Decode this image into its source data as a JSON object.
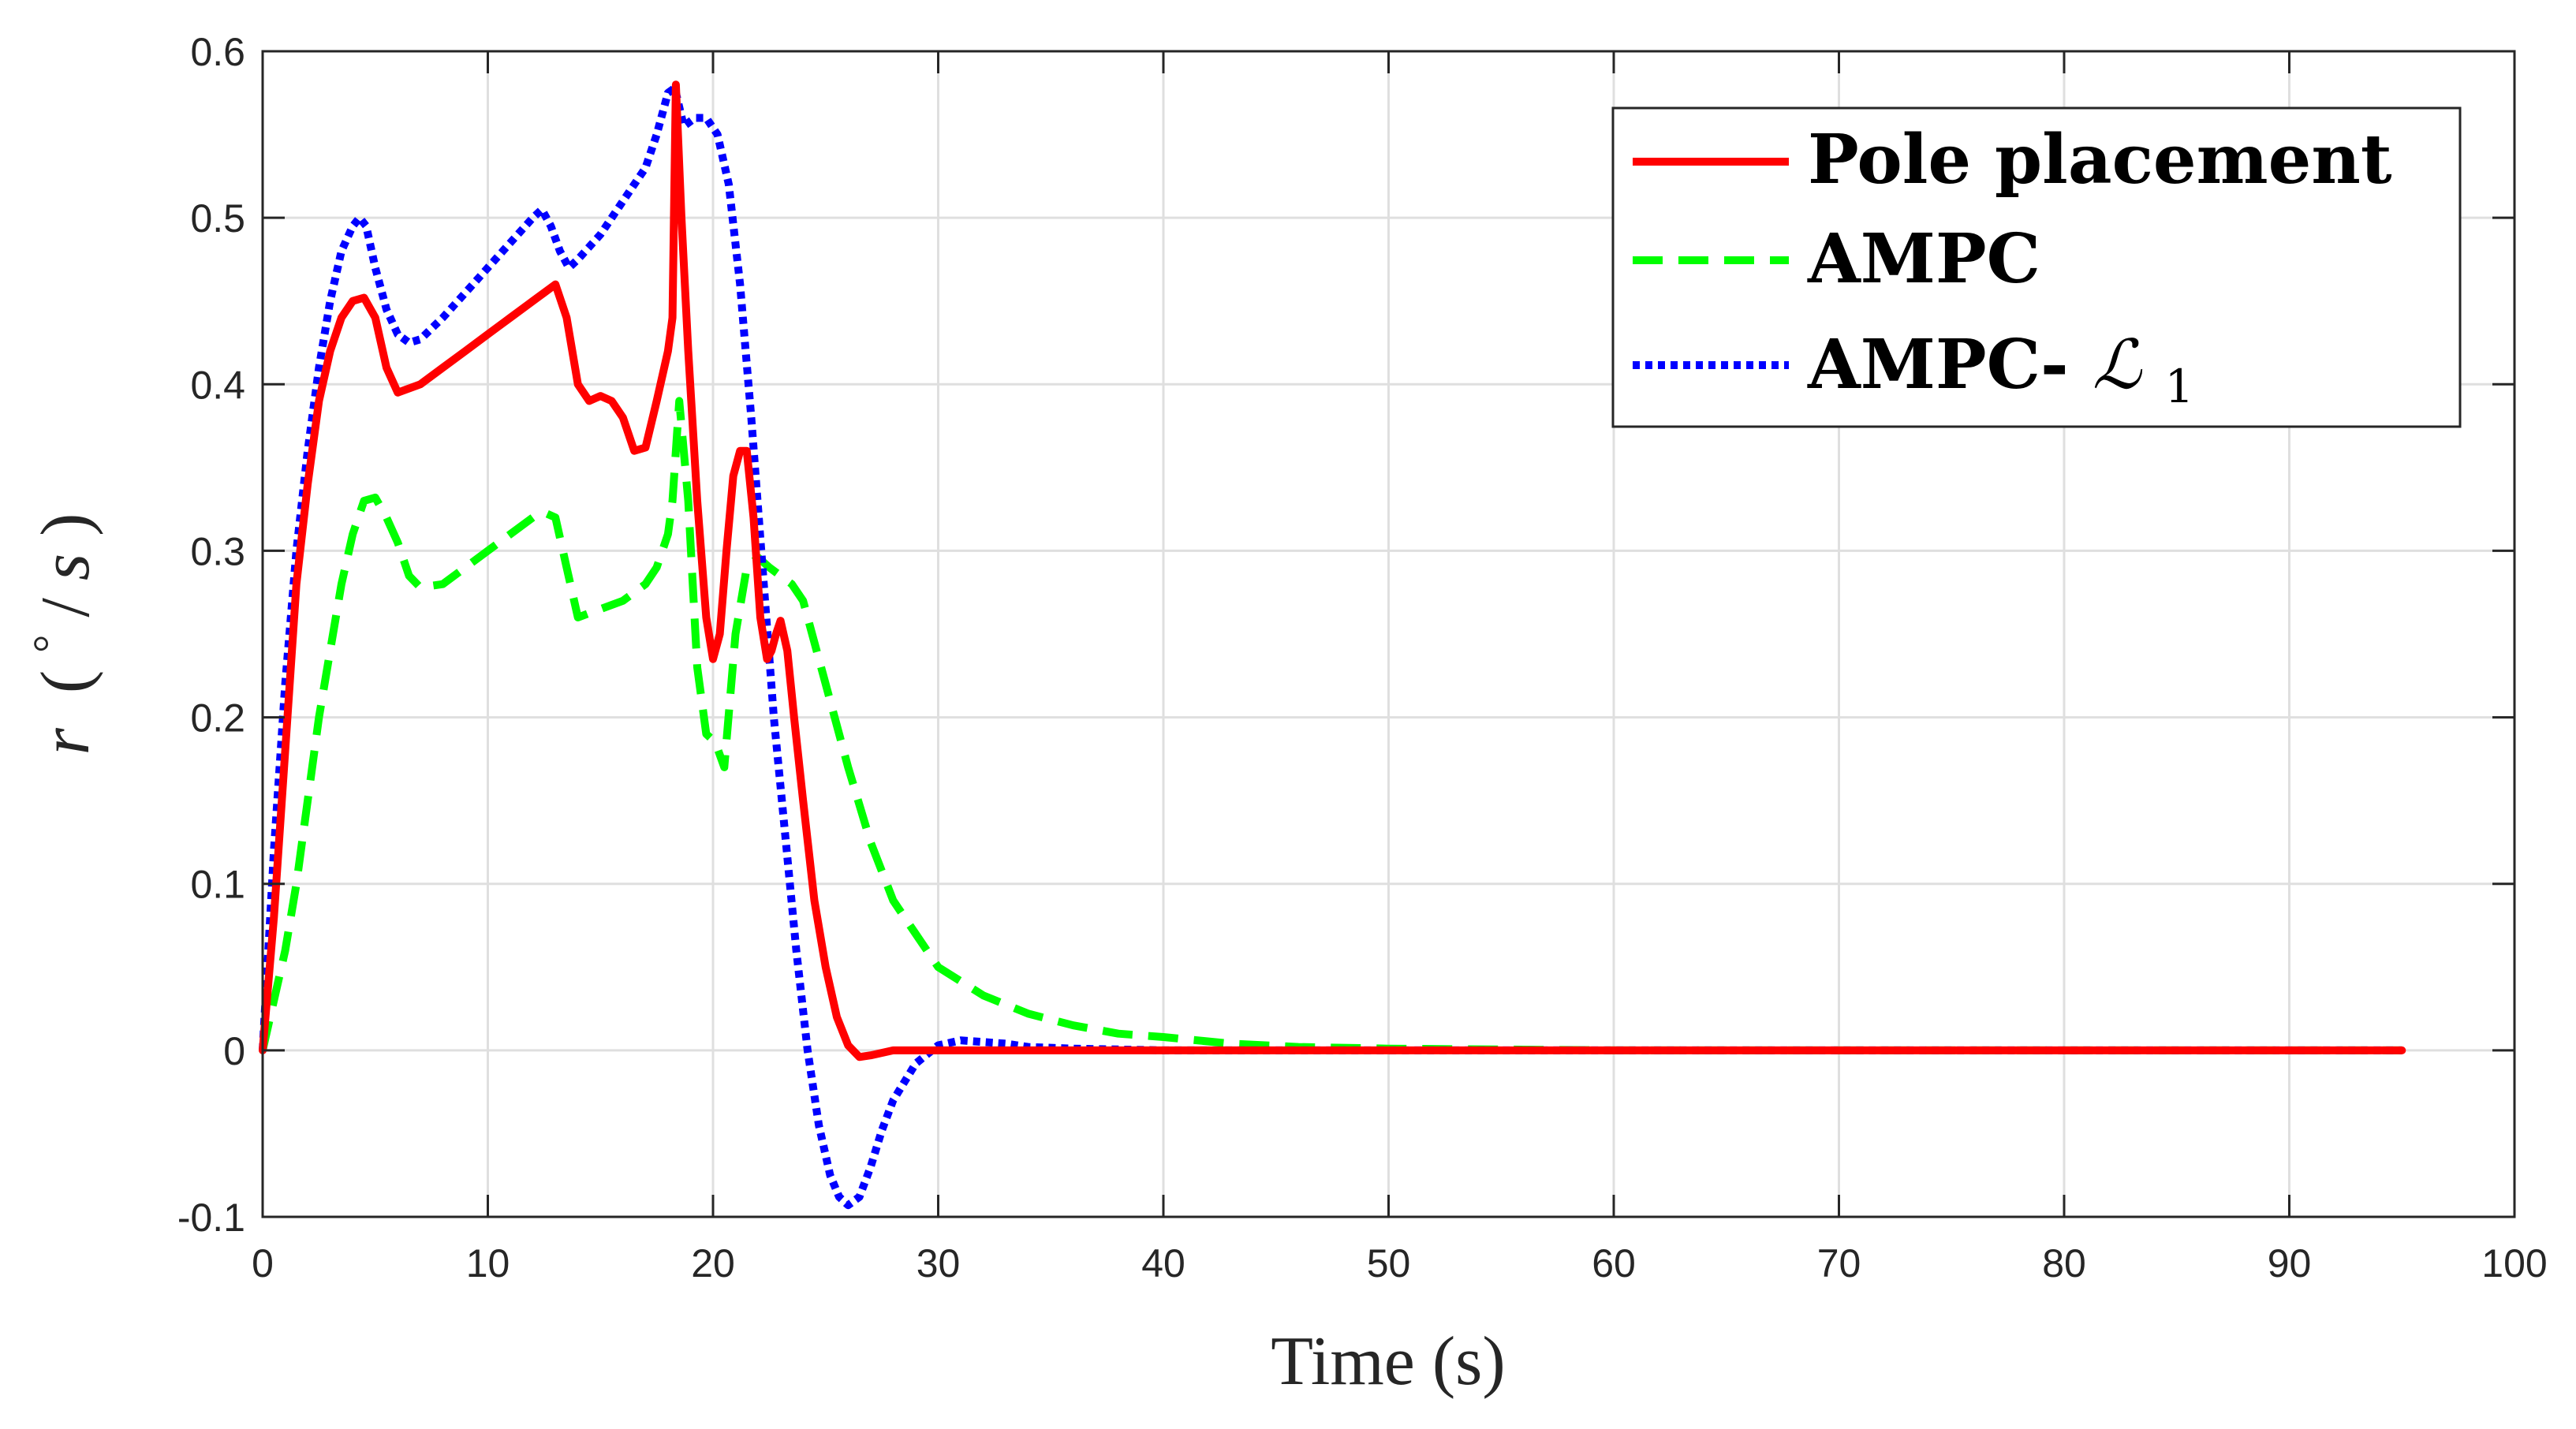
{
  "chart_data": {
    "type": "line",
    "title": "",
    "xlabel": "Time (s)",
    "ylabel_parts": {
      "var": "r",
      "open": "(",
      "deg": "°",
      "slash": "/",
      "unit": "s",
      "close": ")"
    },
    "xlim": [
      0,
      100
    ],
    "ylim": [
      -0.1,
      0.6
    ],
    "xticks": [
      0,
      10,
      20,
      30,
      40,
      50,
      60,
      70,
      80,
      90,
      100
    ],
    "yticks": [
      -0.1,
      0,
      0.1,
      0.2,
      0.3,
      0.4,
      0.5,
      0.6
    ],
    "xtick_labels": [
      "0",
      "10",
      "20",
      "30",
      "40",
      "50",
      "60",
      "70",
      "80",
      "90",
      "100"
    ],
    "ytick_labels": [
      "-0.1",
      "0",
      "0.1",
      "0.2",
      "0.3",
      "0.4",
      "0.5",
      "0.6"
    ],
    "grid": true,
    "legend_position": "top-right",
    "series": [
      {
        "name": "Pole placement",
        "legend_parts": [
          "Pole placement"
        ],
        "color": "#ff0000",
        "style": "solid",
        "x": [
          0,
          0.5,
          1,
          1.5,
          2,
          2.5,
          3,
          3.5,
          4,
          4.5,
          5,
          5.5,
          6,
          7,
          8,
          9,
          10,
          11,
          12,
          12.5,
          13,
          13.5,
          14,
          14.5,
          15,
          15.5,
          16,
          16.5,
          17,
          17.5,
          18,
          18.2,
          18.35,
          18.6,
          18.9,
          19.3,
          19.7,
          20,
          20.3,
          20.6,
          20.9,
          21.2,
          21.5,
          21.8,
          22.1,
          22.4,
          22.6,
          22.8,
          23,
          23.3,
          23.6,
          24,
          24.5,
          25,
          25.5,
          26,
          26.5,
          27,
          28,
          30,
          40,
          60,
          80,
          95
        ],
        "y": [
          0,
          0.08,
          0.18,
          0.28,
          0.34,
          0.39,
          0.42,
          0.44,
          0.45,
          0.452,
          0.44,
          0.41,
          0.395,
          0.4,
          0.41,
          0.42,
          0.43,
          0.44,
          0.45,
          0.455,
          0.46,
          0.44,
          0.4,
          0.39,
          0.393,
          0.39,
          0.38,
          0.36,
          0.362,
          0.39,
          0.42,
          0.44,
          0.58,
          0.5,
          0.42,
          0.33,
          0.26,
          0.235,
          0.25,
          0.3,
          0.345,
          0.36,
          0.36,
          0.32,
          0.26,
          0.235,
          0.24,
          0.25,
          0.258,
          0.24,
          0.2,
          0.15,
          0.09,
          0.05,
          0.02,
          0.003,
          -0.004,
          -0.003,
          0,
          0,
          0,
          0,
          0,
          0
        ]
      },
      {
        "name": "AMPC",
        "legend_parts": [
          "AMPC"
        ],
        "color": "#00ff00",
        "style": "dashed",
        "x": [
          0,
          0.5,
          1,
          1.5,
          2,
          2.5,
          3,
          3.5,
          4,
          4.5,
          5,
          5.5,
          6,
          6.5,
          7,
          8,
          9,
          10,
          11,
          12,
          12.5,
          13,
          13.5,
          14,
          15,
          16,
          17,
          17.5,
          18,
          18.2,
          18.5,
          18.9,
          19.3,
          19.7,
          20.1,
          20.5,
          21,
          21.5,
          22,
          22.5,
          23,
          23.5,
          24,
          25,
          26,
          27,
          28,
          29,
          30,
          32,
          34,
          36,
          38,
          40,
          43,
          46,
          50,
          60,
          80,
          95
        ],
        "y": [
          0,
          0.03,
          0.06,
          0.1,
          0.15,
          0.2,
          0.24,
          0.28,
          0.31,
          0.33,
          0.332,
          0.32,
          0.305,
          0.285,
          0.278,
          0.28,
          0.29,
          0.3,
          0.31,
          0.32,
          0.323,
          0.32,
          0.29,
          0.26,
          0.265,
          0.27,
          0.28,
          0.29,
          0.31,
          0.33,
          0.39,
          0.33,
          0.23,
          0.19,
          0.185,
          0.17,
          0.25,
          0.29,
          0.296,
          0.29,
          0.285,
          0.28,
          0.27,
          0.22,
          0.17,
          0.125,
          0.09,
          0.07,
          0.05,
          0.033,
          0.022,
          0.015,
          0.01,
          0.008,
          0.004,
          0.002,
          0.001,
          0,
          0,
          0
        ]
      },
      {
        "name": "AMPC-L1",
        "legend_parts": [
          "AMPC-",
          "ℒ",
          "1"
        ],
        "color": "#0000ff",
        "style": "dotted",
        "x": [
          0,
          0.5,
          1,
          1.5,
          2,
          2.5,
          3,
          3.5,
          4,
          4.3,
          4.6,
          5,
          5.5,
          6,
          6.5,
          7,
          8,
          9,
          10,
          11,
          12,
          12.4,
          12.8,
          13.2,
          13.6,
          14,
          15,
          16,
          17,
          17.5,
          18,
          18.3,
          18.7,
          19.2,
          19.7,
          20.2,
          20.7,
          21.2,
          21.7,
          22.2,
          22.7,
          23.2,
          23.7,
          24.2,
          24.7,
          25.2,
          25.6,
          26,
          26.5,
          27,
          27.5,
          28,
          29,
          30,
          31,
          32,
          33,
          34,
          36,
          40,
          50,
          70,
          95
        ],
        "y": [
          0,
          0.12,
          0.22,
          0.3,
          0.36,
          0.41,
          0.45,
          0.48,
          0.495,
          0.5,
          0.495,
          0.47,
          0.445,
          0.43,
          0.425,
          0.427,
          0.44,
          0.455,
          0.47,
          0.485,
          0.5,
          0.505,
          0.495,
          0.48,
          0.47,
          0.475,
          0.49,
          0.51,
          0.53,
          0.55,
          0.575,
          0.578,
          0.555,
          0.56,
          0.56,
          0.55,
          0.52,
          0.46,
          0.38,
          0.29,
          0.2,
          0.13,
          0.06,
          0.0,
          -0.045,
          -0.075,
          -0.088,
          -0.093,
          -0.088,
          -0.07,
          -0.048,
          -0.03,
          -0.008,
          0.003,
          0.006,
          0.005,
          0.004,
          0.002,
          0.001,
          0,
          0,
          0,
          0
        ]
      }
    ]
  }
}
